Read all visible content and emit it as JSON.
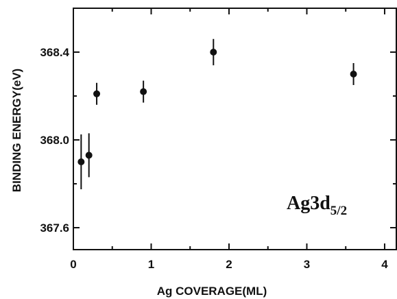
{
  "chart_data": {
    "type": "scatter",
    "xlabel": "Ag COVERAGE(ML)",
    "ylabel": "BINDING ENERGY(eV)",
    "xlim": [
      0,
      4.15
    ],
    "ylim": [
      367.5,
      368.6
    ],
    "x_ticks": [
      0,
      1,
      2,
      3,
      4
    ],
    "x_tick_labels": [
      "0",
      "1",
      "2",
      "3",
      "4"
    ],
    "y_ticks": [
      367.6,
      368.0,
      368.4
    ],
    "y_tick_labels": [
      "367.6",
      "368.0",
      "368.4"
    ],
    "grid": false,
    "points": [
      {
        "x": 0.1,
        "y": 367.9,
        "err": 0.125
      },
      {
        "x": 0.2,
        "y": 367.93,
        "err": 0.1
      },
      {
        "x": 0.3,
        "y": 368.21,
        "err": 0.05
      },
      {
        "x": 0.9,
        "y": 368.22,
        "err": 0.05
      },
      {
        "x": 1.8,
        "y": 368.4,
        "err": 0.06
      },
      {
        "x": 3.6,
        "y": 368.3,
        "err": 0.05
      }
    ],
    "annotation": {
      "main": "Ag3d",
      "subscript": "5/2"
    }
  }
}
